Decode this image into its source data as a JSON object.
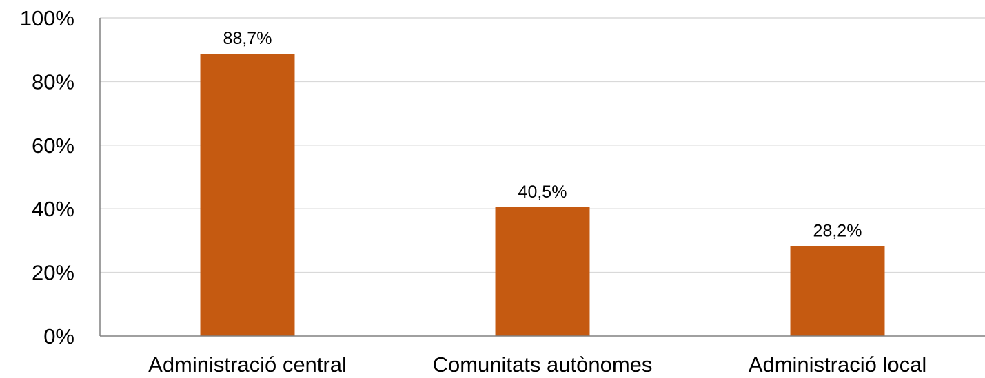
{
  "chart_data": {
    "type": "bar",
    "categories": [
      "Administració central",
      "Comunitats autònomes",
      "Administració local"
    ],
    "values": [
      88.7,
      40.5,
      28.2
    ],
    "data_labels": [
      "88,7%",
      "40,5%",
      "28,2%"
    ],
    "yticks": [
      0,
      20,
      40,
      60,
      80,
      100
    ],
    "ytick_labels": [
      "0%",
      "20%",
      "40%",
      "60%",
      "80%",
      "100%"
    ],
    "ylim": [
      0,
      100
    ],
    "grid": true,
    "legend": "none",
    "bar_color": "#c55a11"
  }
}
